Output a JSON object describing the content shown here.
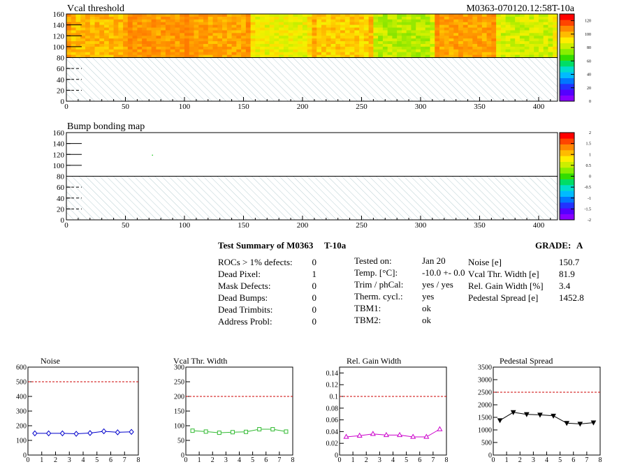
{
  "header": {
    "module_run": "M0363-070120.12:58T-10a"
  },
  "maps": [
    {
      "id": "vcal",
      "title": "Vcal threshold",
      "x_ticks": [
        0,
        50,
        100,
        150,
        200,
        250,
        300,
        350,
        400
      ],
      "y_ticks": [
        0,
        20,
        40,
        60,
        80,
        100,
        120,
        140,
        160
      ],
      "colorbar_ticks": [
        "0",
        "20",
        "40",
        "60",
        "80",
        "100",
        "120"
      ]
    },
    {
      "id": "bump",
      "title": "Bump bonding map",
      "x_ticks": [
        0,
        50,
        100,
        150,
        200,
        250,
        300,
        350,
        400
      ],
      "y_ticks": [
        0,
        20,
        40,
        60,
        80,
        100,
        120,
        140,
        160
      ],
      "colorbar_ticks": [
        "-2",
        "-1.5",
        "-1",
        "-0.5",
        "0",
        "0.5",
        "1",
        "1.5",
        "2"
      ]
    }
  ],
  "summary": {
    "title": "Test Summary of M0363",
    "tag": "T-10a",
    "grade_label": "GRADE:",
    "grade": "A",
    "defects": [
      {
        "label": "ROCs > 1% defects:",
        "value": "0"
      },
      {
        "label": "Dead Pixel:",
        "value": "1"
      },
      {
        "label": "Mask Defects:",
        "value": "0"
      },
      {
        "label": "Dead Bumps:",
        "value": "0"
      },
      {
        "label": "Dead Trimbits:",
        "value": "0"
      },
      {
        "label": "Address Probl:",
        "value": "0"
      }
    ],
    "conditions": [
      {
        "label": "Tested on:",
        "value": "Jan 20"
      },
      {
        "label": "Temp. [°C]:",
        "value": "-10.0 +- 0.0"
      },
      {
        "label": "Trim / phCal:",
        "value": "yes / yes"
      },
      {
        "label": "Therm. cycl.:",
        "value": "yes"
      },
      {
        "label": "TBM1:",
        "value": "ok"
      },
      {
        "label": "TBM2:",
        "value": "ok"
      }
    ],
    "results": [
      {
        "label": "Noise [e]",
        "value": "150.7"
      },
      {
        "label": "Vcal Thr. Width [e]",
        "value": "81.9"
      },
      {
        "label": "Rel. Gain Width [%]",
        "value": "3.4"
      },
      {
        "label": "Pedestal Spread [e]",
        "value": "1452.8"
      }
    ]
  },
  "chart_data": [
    {
      "type": "line",
      "title": "Noise",
      "x": [
        0.5,
        1.5,
        2.5,
        3.5,
        4.5,
        5.5,
        6.5,
        7.5
      ],
      "values": [
        148,
        148,
        148,
        145,
        150,
        162,
        155,
        158
      ],
      "xlim": [
        0,
        8
      ],
      "ylim": [
        0,
        600
      ],
      "y_ticks": [
        "0",
        "100",
        "200",
        "300",
        "400",
        "500",
        "600"
      ],
      "x_ticks": [
        "0",
        "1",
        "2",
        "3",
        "4",
        "5",
        "6",
        "7",
        "8"
      ],
      "limit": 500,
      "color": "#0000cc",
      "marker": "diamond"
    },
    {
      "type": "line",
      "title": "Vcal Thr. Width",
      "x": [
        0.5,
        1.5,
        2.5,
        3.5,
        4.5,
        5.5,
        6.5,
        7.5
      ],
      "values": [
        83,
        80,
        76,
        78,
        79,
        88,
        88,
        80
      ],
      "xlim": [
        0,
        8
      ],
      "ylim": [
        0,
        300
      ],
      "y_ticks": [
        "0",
        "50",
        "100",
        "150",
        "200",
        "250",
        "300"
      ],
      "x_ticks": [
        "0",
        "1",
        "2",
        "3",
        "4",
        "5",
        "6",
        "7",
        "8"
      ],
      "limit": 200,
      "color": "#33bb33",
      "marker": "square"
    },
    {
      "type": "line",
      "title": "Rel. Gain Width",
      "x": [
        0.5,
        1.5,
        2.5,
        3.5,
        4.5,
        5.5,
        6.5,
        7.5
      ],
      "values": [
        0.031,
        0.033,
        0.036,
        0.034,
        0.034,
        0.031,
        0.031,
        0.044
      ],
      "xlim": [
        0,
        8
      ],
      "ylim": [
        0,
        0.15
      ],
      "y_ticks": [
        "0",
        "0.02",
        "0.04",
        "0.06",
        "0.08",
        "0.1",
        "0.12",
        "0.14"
      ],
      "y_tick_values": [
        0,
        0.02,
        0.04,
        0.06,
        0.08,
        0.1,
        0.12,
        0.14
      ],
      "x_ticks": [
        "0",
        "1",
        "2",
        "3",
        "4",
        "5",
        "6",
        "7",
        "8"
      ],
      "limit": 0.1,
      "color": "#cc00cc",
      "marker": "triangle"
    },
    {
      "type": "line",
      "title": "Pedestal Spread",
      "x": [
        0.5,
        1.5,
        2.5,
        3.5,
        4.5,
        5.5,
        6.5,
        7.5
      ],
      "values": [
        1380,
        1700,
        1620,
        1600,
        1560,
        1270,
        1240,
        1290
      ],
      "xlim": [
        0,
        8
      ],
      "ylim": [
        0,
        3500
      ],
      "y_ticks": [
        "0",
        "500",
        "1000",
        "1500",
        "2000",
        "2500",
        "3000",
        "3500"
      ],
      "x_ticks": [
        "0",
        "1",
        "2",
        "3",
        "4",
        "5",
        "6",
        "7",
        "8"
      ],
      "limit": 2500,
      "color": "#000000",
      "marker": "triangle-down"
    }
  ]
}
